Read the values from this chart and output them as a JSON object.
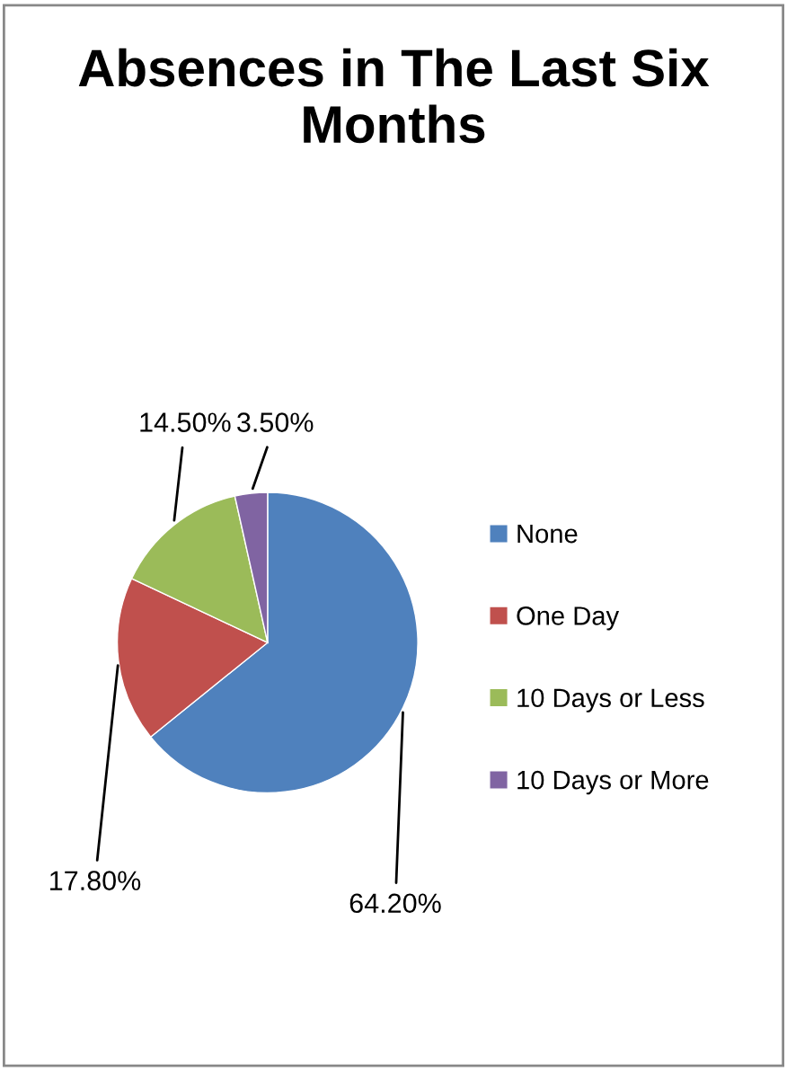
{
  "chart_data": {
    "type": "pie",
    "title": "Absences in The Last Six Months",
    "categories": [
      "None",
      "One Day",
      "10 Days or Less",
      "10 Days or More"
    ],
    "values": [
      64.2,
      17.8,
      14.5,
      3.5
    ],
    "colors": [
      "#4f81bd",
      "#c0504d",
      "#9bbb59",
      "#8064a2"
    ],
    "value_labels": [
      "64.20%",
      "17.80%",
      "14.50%",
      "3.50%"
    ],
    "legend": "right"
  }
}
